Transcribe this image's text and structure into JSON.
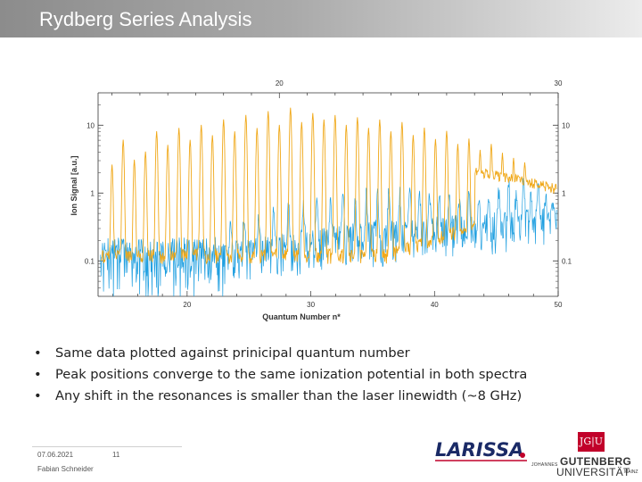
{
  "slide": {
    "title": "Rydberg Series Analysis",
    "bullets": [
      "Same data plotted against prinicipal quantum number",
      "Peak positions converge to the same ionization potential in both spectra",
      "Any shift in the resonances is smaller than the laser linewidth (~8 GHz)"
    ],
    "footer": {
      "date": "07.06.2021",
      "page": "11",
      "author": "Fabian Schneider"
    },
    "logos": {
      "larissa": "LARISSA",
      "jgu_mark": "JG|U",
      "jgu_line1": "JOHANNES",
      "jgu_line2": "GUTENBERG",
      "jgu_line3": "UNIVERSITÄT",
      "jgu_line4": "MAINZ"
    }
  },
  "chart_data": {
    "type": "line",
    "xlabel": "Quantum Number  n*",
    "ylabel": "Ion Signal [a.u.]",
    "y_scale": "log",
    "ylim": [
      0.03,
      30
    ],
    "y_ticks": [
      0.1,
      1,
      10
    ],
    "y_tick_labels": [
      "0.1",
      "1",
      "10"
    ],
    "x_bottom": {
      "lim": [
        12.8,
        50
      ],
      "ticks": [
        20,
        30,
        40,
        50
      ],
      "tick_labels": [
        "20",
        "30",
        "40",
        "50"
      ]
    },
    "x_top": {
      "lim": [
        13.5,
        30
      ],
      "ticks": [
        20,
        30
      ],
      "tick_labels": [
        "20",
        "30"
      ]
    },
    "series": [
      {
        "axis": "top",
        "color": "#f0a818",
        "baseline": 0.1,
        "peaks": [
          {
            "x": 14.0,
            "y": 2.5
          },
          {
            "x": 14.4,
            "y": 6
          },
          {
            "x": 14.8,
            "y": 3
          },
          {
            "x": 15.2,
            "y": 4
          },
          {
            "x": 15.6,
            "y": 8
          },
          {
            "x": 16.0,
            "y": 5
          },
          {
            "x": 16.4,
            "y": 9
          },
          {
            "x": 16.8,
            "y": 6
          },
          {
            "x": 17.2,
            "y": 10
          },
          {
            "x": 17.6,
            "y": 7
          },
          {
            "x": 18.0,
            "y": 12
          },
          {
            "x": 18.4,
            "y": 8
          },
          {
            "x": 18.8,
            "y": 14
          },
          {
            "x": 19.2,
            "y": 9
          },
          {
            "x": 19.6,
            "y": 16
          },
          {
            "x": 20.0,
            "y": 10
          },
          {
            "x": 20.4,
            "y": 18
          },
          {
            "x": 20.8,
            "y": 11
          },
          {
            "x": 21.2,
            "y": 15
          },
          {
            "x": 21.6,
            "y": 12
          },
          {
            "x": 22.0,
            "y": 14
          },
          {
            "x": 22.4,
            "y": 10
          },
          {
            "x": 22.8,
            "y": 13
          },
          {
            "x": 23.2,
            "y": 9
          },
          {
            "x": 23.6,
            "y": 12
          },
          {
            "x": 24.0,
            "y": 8
          },
          {
            "x": 24.4,
            "y": 11
          },
          {
            "x": 24.8,
            "y": 7
          },
          {
            "x": 25.2,
            "y": 9
          },
          {
            "x": 25.6,
            "y": 6
          },
          {
            "x": 26.0,
            "y": 8
          },
          {
            "x": 26.4,
            "y": 5
          },
          {
            "x": 26.8,
            "y": 6
          },
          {
            "x": 27.2,
            "y": 4
          },
          {
            "x": 27.6,
            "y": 5
          },
          {
            "x": 28.0,
            "y": 3.5
          },
          {
            "x": 28.4,
            "y": 3
          },
          {
            "x": 28.8,
            "y": 2.5
          }
        ],
        "tail": {
          "x_start": 27.0,
          "x_end": 30.0,
          "y_start": 2.0,
          "y_end": 1.1
        }
      },
      {
        "axis": "bottom",
        "color": "#1f9fe0",
        "baseline": 0.05,
        "noise_x": [
          13,
          23
        ],
        "peaks": [
          {
            "x": 23.5,
            "y": 0.3
          },
          {
            "x": 24.6,
            "y": 0.35
          },
          {
            "x": 25.8,
            "y": 0.4
          },
          {
            "x": 27.0,
            "y": 0.5
          },
          {
            "x": 28.2,
            "y": 0.6
          },
          {
            "x": 29.4,
            "y": 0.55
          },
          {
            "x": 30.5,
            "y": 0.7
          },
          {
            "x": 31.6,
            "y": 0.6
          },
          {
            "x": 32.6,
            "y": 0.8
          },
          {
            "x": 33.6,
            "y": 0.7
          },
          {
            "x": 34.5,
            "y": 0.9
          },
          {
            "x": 35.4,
            "y": 0.8
          },
          {
            "x": 36.3,
            "y": 1.0
          },
          {
            "x": 37.2,
            "y": 0.9
          },
          {
            "x": 38.0,
            "y": 1.1
          },
          {
            "x": 38.8,
            "y": 0.9
          },
          {
            "x": 39.6,
            "y": 1.0
          },
          {
            "x": 40.4,
            "y": 0.8
          },
          {
            "x": 41.2,
            "y": 0.9
          },
          {
            "x": 42.0,
            "y": 0.7
          },
          {
            "x": 42.8,
            "y": 0.8
          },
          {
            "x": 43.6,
            "y": 0.6
          },
          {
            "x": 44.4,
            "y": 0.7
          },
          {
            "x": 45.2,
            "y": 0.9
          },
          {
            "x": 46.0,
            "y": 1.2
          },
          {
            "x": 46.6,
            "y": 0.8
          },
          {
            "x": 47.2,
            "y": 1.5
          },
          {
            "x": 47.8,
            "y": 0.9
          },
          {
            "x": 48.4,
            "y": 1.3
          },
          {
            "x": 49.0,
            "y": 0.7
          },
          {
            "x": 49.6,
            "y": 0.5
          }
        ]
      }
    ]
  }
}
